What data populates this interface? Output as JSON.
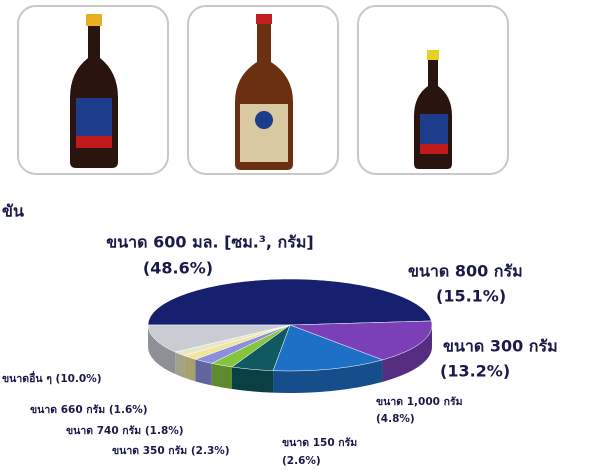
{
  "chart_data": {
    "type": "pie",
    "title": "ขัน",
    "categories": [
      "ขนาด 600 มล. [ซม.³, กรัม]",
      "ขนาด 800 กรัม",
      "ขนาด 300 กรัม",
      "ขนาด 1,000 กรัม",
      "ขนาด 150 กรัม",
      "ขนาด 350 กรัม",
      "ขนาด 740 กรัม",
      "ขนาด 660 กรัม",
      "ขนาดอื่น ๆ"
    ],
    "values": [
      48.6,
      15.1,
      13.2,
      4.8,
      2.6,
      2.3,
      1.8,
      1.6,
      10.0
    ],
    "value_labels": [
      "(48.6%)",
      "(15.1%)",
      "(13.2%)",
      "(4.8%)",
      "(2.6%)",
      "(2.3%)",
      "(1.8%)",
      "(1.6%)",
      "(10.0%)"
    ],
    "colors": [
      "#16206e",
      "#7b3fb8",
      "#1e6fc6",
      "#0e5a60",
      "#86c440",
      "#8a8fe0",
      "#f1e59b",
      "#e6e6c8",
      "#c9cdd3"
    ]
  }
}
